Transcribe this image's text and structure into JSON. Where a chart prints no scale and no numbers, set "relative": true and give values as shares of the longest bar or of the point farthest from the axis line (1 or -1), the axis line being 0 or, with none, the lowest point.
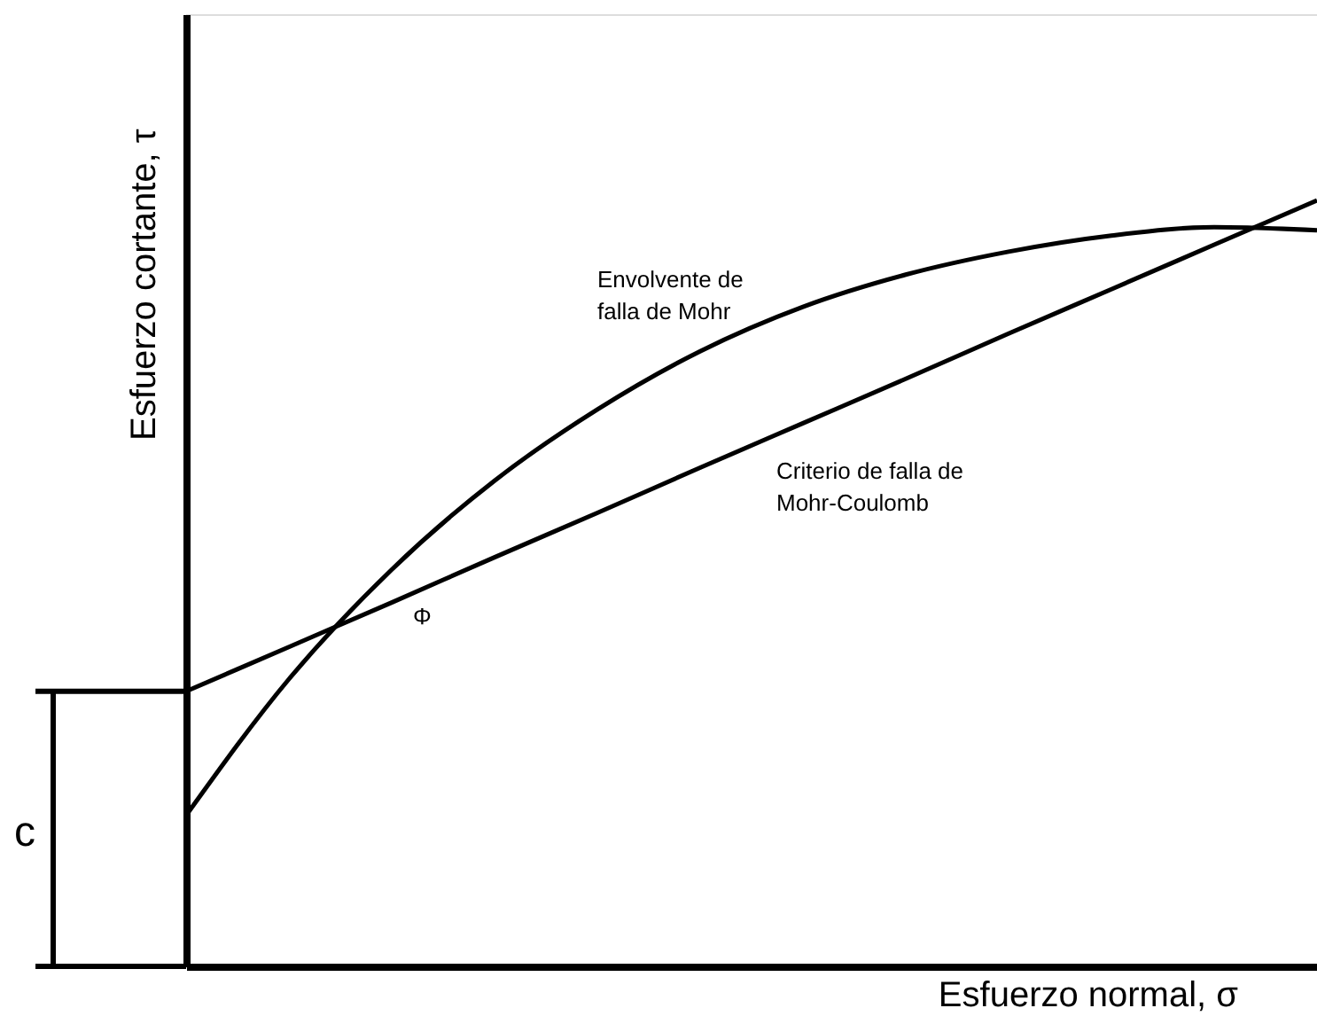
{
  "chart_data": {
    "type": "line",
    "relative": true,
    "xlabel": "Esfuerzo normal, σ",
    "ylabel": "Esfuerzo cortante, τ",
    "categories": [
      null,
      null,
      null,
      null,
      null,
      null,
      null,
      null,
      null,
      null,
      null,
      null
    ],
    "series": [
      {
        "color": "#000000",
        "values": [
          0.197,
          0.375,
          0.518,
          0.634,
          0.727,
          0.803,
          0.861,
          0.903,
          0.933,
          0.954,
          0.965,
          0.961
        ]
      },
      {
        "color": "#000000",
        "values": [
          0.359,
          0.417,
          0.475,
          0.534,
          0.592,
          0.651,
          0.709,
          0.767,
          0.826,
          0.884,
          0.942,
          1.0
        ]
      }
    ],
    "annotations": [
      "Envolvente de\nfalla de Mohr",
      "Criterio de falla de\nMohr-Coulomb",
      "Φ",
      "c"
    ],
    "grid": false,
    "marker": "none",
    "line_style": "solid"
  }
}
